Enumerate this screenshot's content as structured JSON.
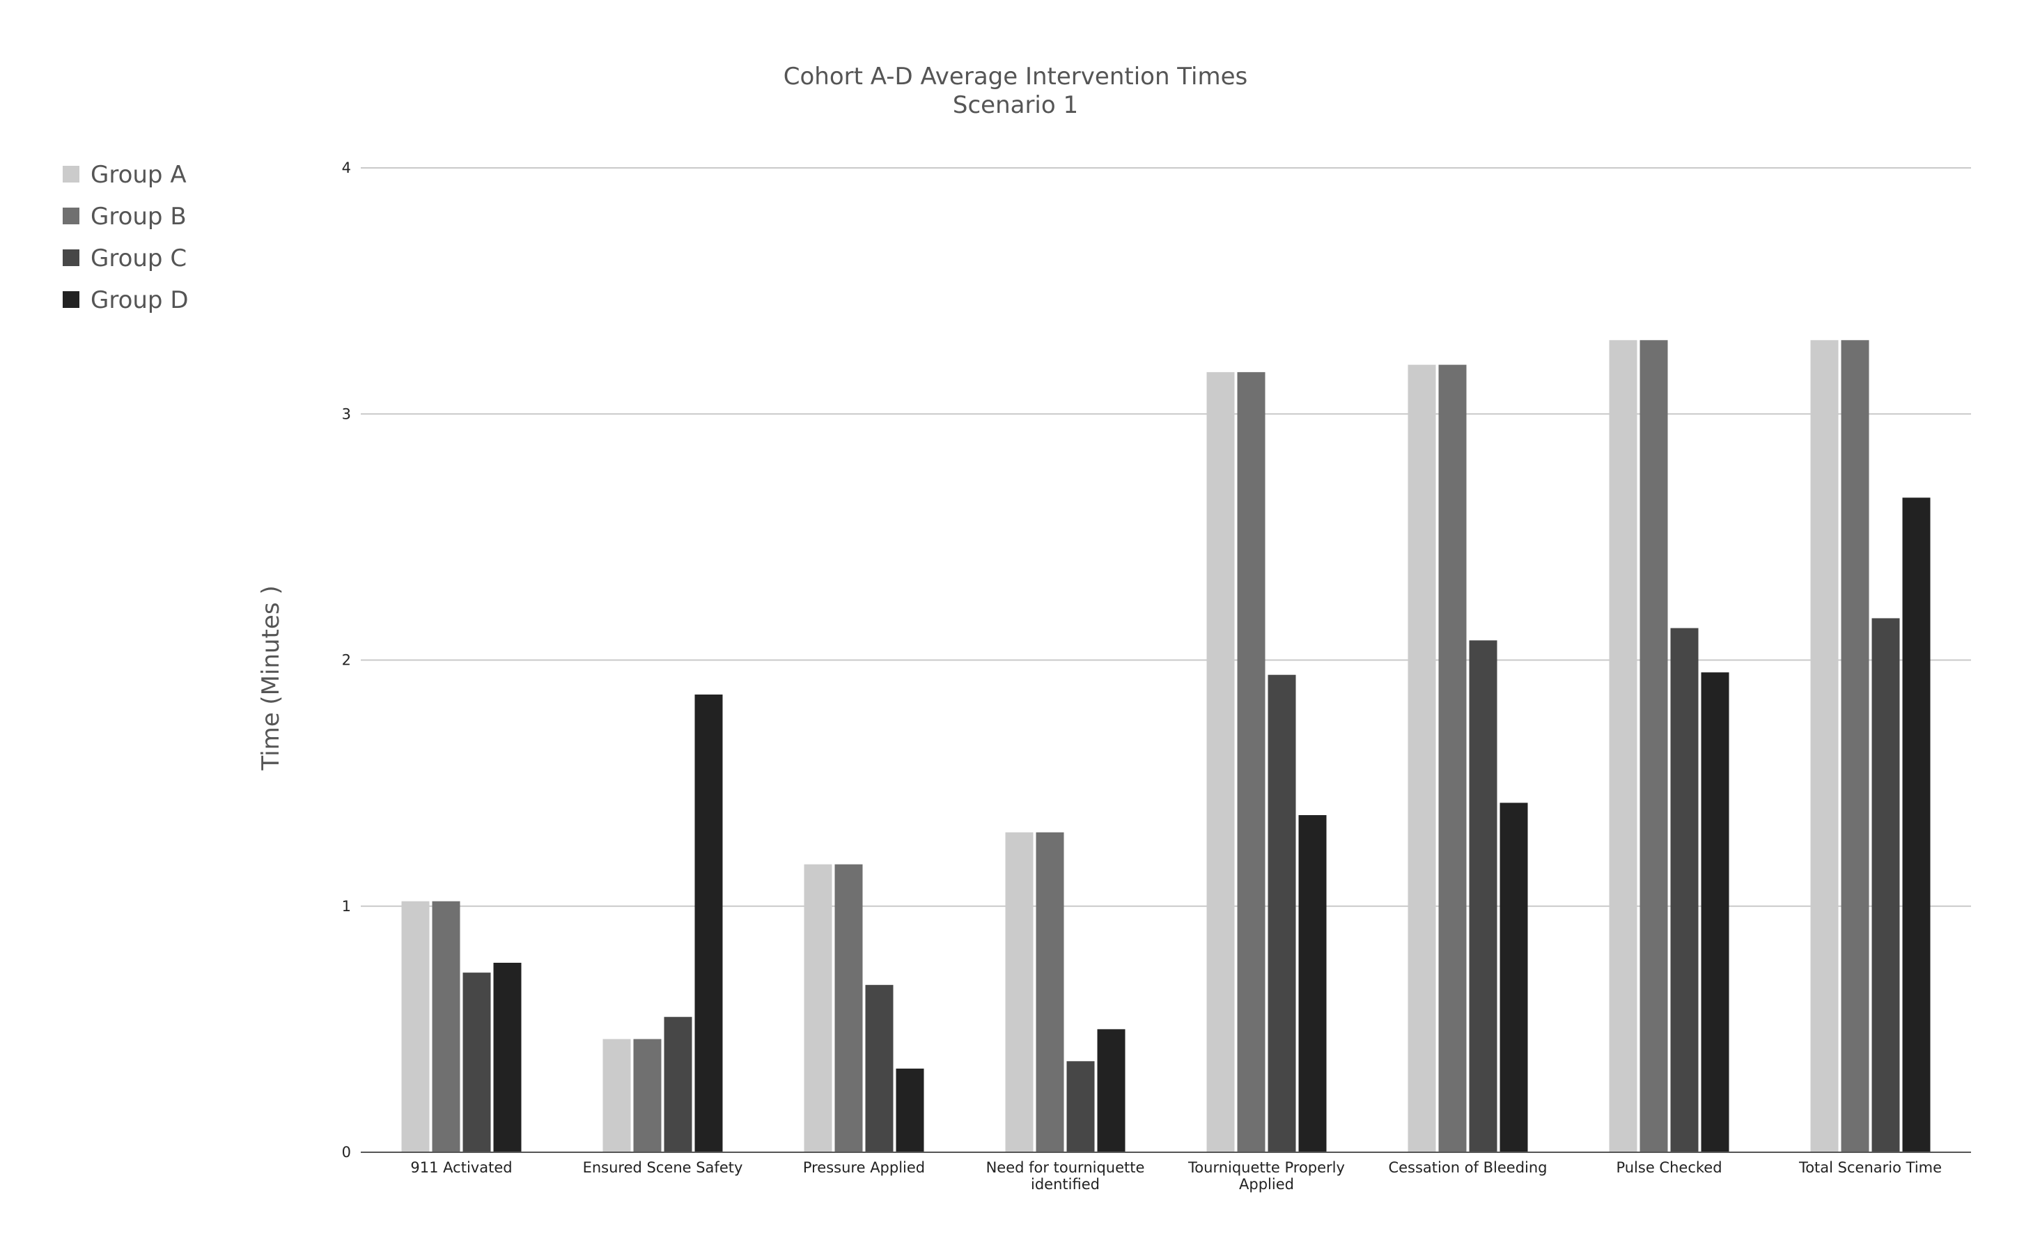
{
  "chart_data": {
    "type": "bar",
    "title": "Cohort A-D Average Intervention Times",
    "subtitle": "Scenario 1",
    "xlabel": "",
    "ylabel": "Time (Minutes )",
    "ylim": [
      0,
      4
    ],
    "yticks": [
      "0",
      "1",
      "2",
      "3",
      "4"
    ],
    "grid": true,
    "legend_position": "left",
    "categories": [
      "911 Activated",
      "Ensured Scene Safety",
      "Pressure Applied",
      "Need for tourniquette identified",
      "Tourniquette Properly Applied",
      "Cessation of Bleeding",
      "Pulse Checked",
      "Total Scenario Time"
    ],
    "category_lines": [
      [
        "911 Activated"
      ],
      [
        "Ensured Scene Safety"
      ],
      [
        "Pressure Applied"
      ],
      [
        "Need for tourniquette",
        "identified"
      ],
      [
        "Tourniquette Properly",
        "Applied"
      ],
      [
        "Cessation of Bleeding"
      ],
      [
        "Pulse Checked"
      ],
      [
        "Total Scenario Time"
      ]
    ],
    "series": [
      {
        "name": "Group A",
        "color": "#cbcbcb",
        "values": [
          1.02,
          0.46,
          1.17,
          1.3,
          3.17,
          3.2,
          3.3,
          3.3
        ]
      },
      {
        "name": "Group B",
        "color": "#707070",
        "values": [
          1.02,
          0.46,
          1.17,
          1.3,
          3.17,
          3.2,
          3.3,
          3.3
        ]
      },
      {
        "name": "Group C",
        "color": "#474747",
        "values": [
          0.73,
          0.55,
          0.68,
          0.37,
          1.94,
          2.08,
          2.13,
          2.17
        ]
      },
      {
        "name": "Group D",
        "color": "#222222",
        "values": [
          0.77,
          1.86,
          0.34,
          0.5,
          1.37,
          1.42,
          1.95,
          2.66
        ]
      }
    ],
    "colors": {
      "grid": "#c9c9c9",
      "axis": "#555555",
      "text": "#555555"
    }
  }
}
